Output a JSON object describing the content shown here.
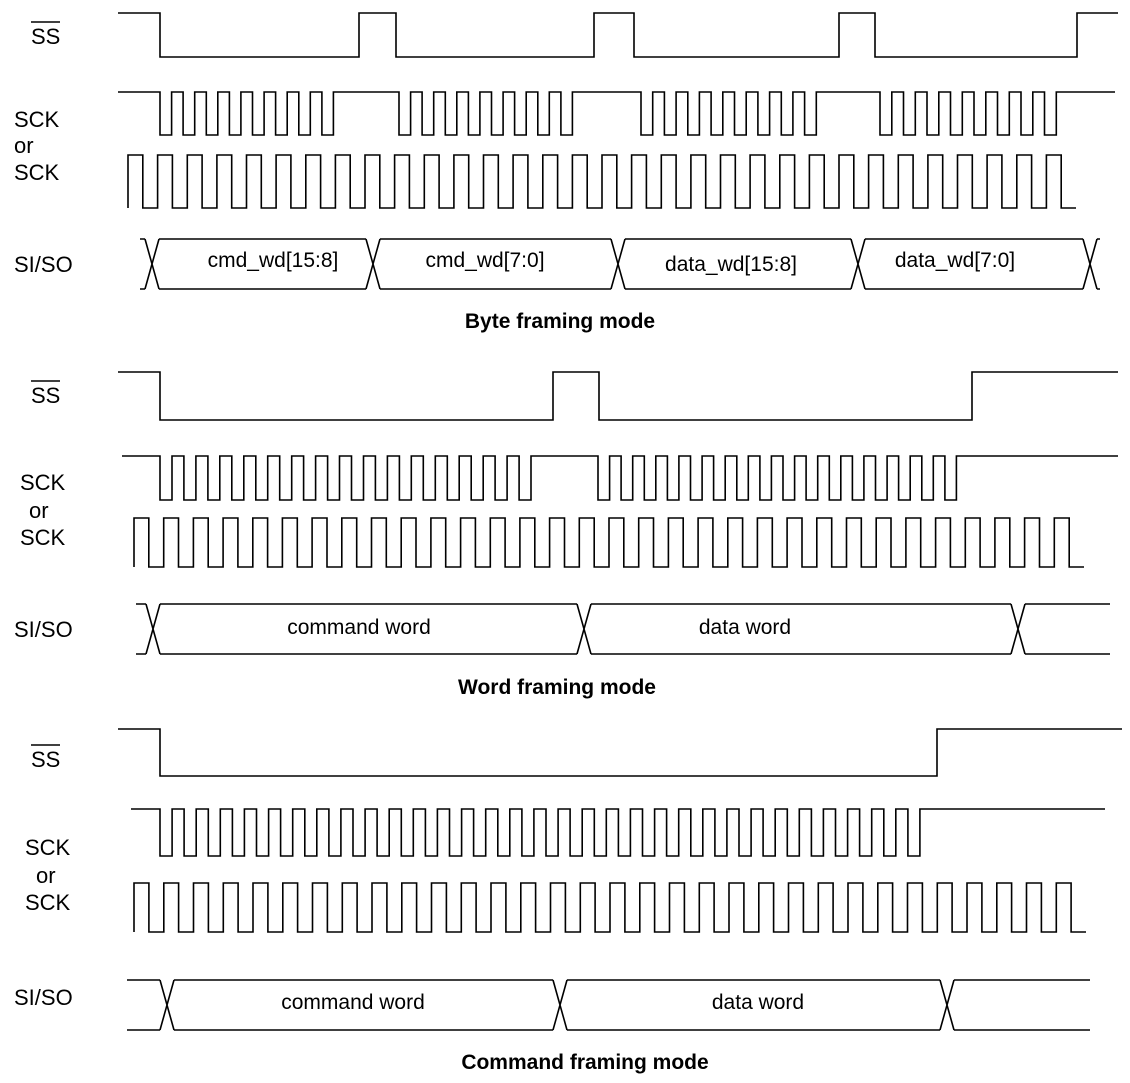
{
  "signals": {
    "ss": "SS",
    "sck": "SCK",
    "or": "or",
    "sck_inverted": "SCK",
    "bus": "SI/SO"
  },
  "panels": [
    {
      "caption": "Byte framing mode",
      "ss_low_intervals": [
        [
          160,
          359
        ],
        [
          396,
          594
        ],
        [
          634,
          839
        ],
        [
          875,
          1077
        ]
      ],
      "sck_bursts": [
        [
          160,
          345,
          8
        ],
        [
          399,
          584,
          8
        ],
        [
          641,
          828,
          8
        ],
        [
          880,
          1068,
          8
        ]
      ],
      "sck2_burst": [
        128,
        1076,
        32
      ],
      "bus_transitions": [
        152,
        373,
        618,
        858,
        1090
      ],
      "bus_fields": [
        "cmd_wd[15:8]",
        "cmd_wd[7:0]",
        "data_wd[15:8]",
        "data_wd[7:0]"
      ]
    },
    {
      "caption": "Word framing mode",
      "ss_low_intervals": [
        [
          160,
          553
        ],
        [
          599,
          972
        ]
      ],
      "sck_bursts": [
        [
          160,
          543,
          16
        ],
        [
          598,
          968,
          16
        ]
      ],
      "sck2_burst": [
        134,
        1084,
        32
      ],
      "bus_transitions": [
        153,
        584,
        1018
      ],
      "bus_fields": [
        "command word",
        "data word"
      ]
    },
    {
      "caption": "Command framing mode",
      "ss_low_intervals": [
        [
          160,
          937
        ]
      ],
      "sck_bursts": [
        [
          160,
          932,
          32
        ]
      ],
      "sck2_burst": [
        134,
        1086,
        32
      ],
      "bus_transitions": [
        167,
        560,
        947
      ],
      "bus_fields": [
        "command word",
        "data word"
      ]
    }
  ]
}
